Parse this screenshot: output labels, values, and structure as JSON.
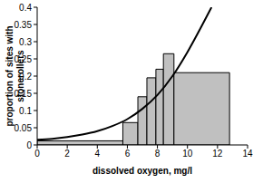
{
  "chart_data": {
    "type": "histogram",
    "xlabel": "dissolved oxygen, mg/l",
    "ylabel": "proportion of sites with stonerollers",
    "bins": [
      0,
      5.7,
      6.7,
      7.3,
      7.9,
      8.4,
      9.1,
      12.8
    ],
    "counts": [
      0.012,
      0.065,
      0.14,
      0.195,
      0.22,
      0.265,
      0.21
    ],
    "color": "#c0c0c0",
    "series": [
      {
        "type": "line",
        "color": "#000000",
        "x": [
          0,
          1,
          2,
          3,
          4,
          5,
          6,
          7,
          8,
          9,
          10,
          11,
          11.6
        ],
        "values": [
          0.015,
          0.018,
          0.023,
          0.03,
          0.04,
          0.055,
          0.075,
          0.105,
          0.145,
          0.2,
          0.27,
          0.35,
          0.4
        ]
      }
    ],
    "xlim": [
      0,
      14
    ],
    "xticks": [
      0,
      2,
      4,
      6,
      8,
      10,
      12,
      14
    ],
    "ylim": [
      0,
      0.4
    ],
    "yticks": [
      0,
      0.05,
      0.1,
      0.15,
      0.2,
      0.25,
      0.3,
      0.35,
      0.4
    ],
    "grid": false
  }
}
